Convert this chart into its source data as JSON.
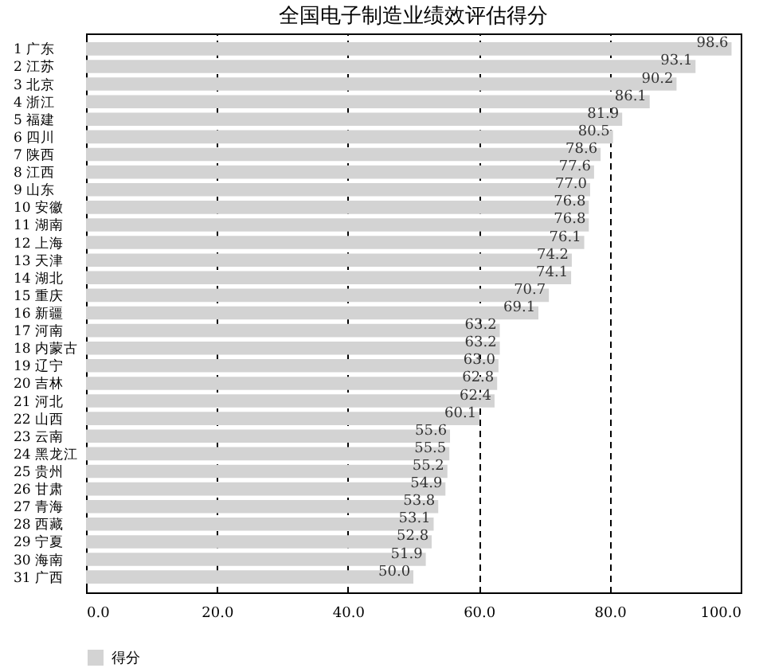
{
  "chart_data": {
    "type": "bar",
    "orientation": "horizontal",
    "title": "全国电子制造业绩效评估得分",
    "categories": [
      "1 广东",
      "2 江苏",
      "3 北京",
      "4 浙江",
      "5 福建",
      "6 四川",
      "7 陕西",
      "8 江西",
      "9 山东",
      "10 安徽",
      "11 湖南",
      "12 上海",
      "13 天津",
      "14 湖北",
      "15 重庆",
      "16 新疆",
      "17 河南",
      "18 内蒙古",
      "19 辽宁",
      "20 吉林",
      "21 河北",
      "22 山西",
      "23 云南",
      "24 黑龙江",
      "25 贵州",
      "26 甘肃",
      "27 青海",
      "28 西藏",
      "29 宁夏",
      "30 海南",
      "31 广西"
    ],
    "series": [
      {
        "name": "得分",
        "color": "#d3d3d3",
        "values": [
          98.6,
          93.1,
          90.2,
          86.1,
          81.9,
          80.5,
          78.6,
          77.6,
          77.0,
          76.8,
          76.8,
          76.1,
          74.2,
          74.1,
          70.7,
          69.1,
          63.2,
          63.2,
          63.0,
          62.8,
          62.4,
          60.1,
          55.6,
          55.5,
          55.2,
          54.9,
          53.8,
          53.1,
          52.8,
          51.9,
          50.0
        ],
        "value_labels": [
          "98.6",
          "93.1",
          "90.2",
          "86.1",
          "81.9",
          "80.5",
          "78.6",
          "77.6",
          "77.0",
          "76.8",
          "76.8",
          "76.1",
          "74.2",
          "74.1",
          "70.7",
          "69.1",
          "63.2",
          "63.2",
          "63.0",
          "62.8",
          "62.4",
          "60.1",
          "55.6",
          "55.5",
          "55.2",
          "54.9",
          "53.8",
          "53.1",
          "52.8",
          "51.9",
          "50.0"
        ]
      }
    ],
    "xlim": [
      0,
      100
    ],
    "xticks": [
      {
        "value": 0,
        "label": "0.0"
      },
      {
        "value": 20,
        "label": "20.0"
      },
      {
        "value": 40,
        "label": "40.0"
      },
      {
        "value": 60,
        "label": "60.0"
      },
      {
        "value": 80,
        "label": "80.0"
      },
      {
        "value": 100,
        "label": "100.0"
      }
    ],
    "grid": "x",
    "legend": "bottom"
  }
}
